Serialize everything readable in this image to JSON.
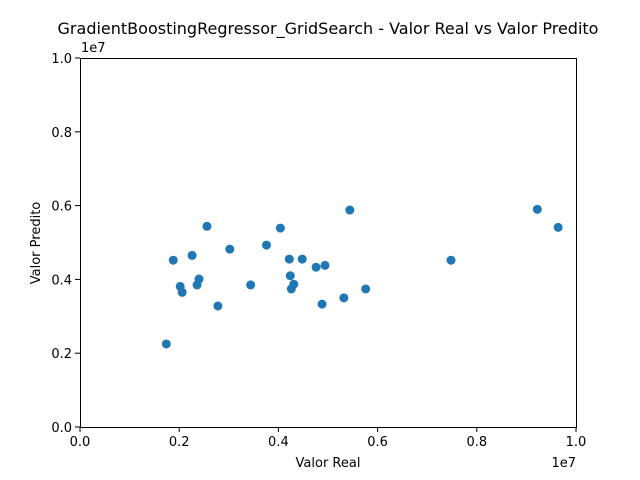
{
  "chart_data": {
    "type": "scatter",
    "title": "GradientBoostingRegressor_GridSearch - Valor Real vs Valor Predito",
    "xlabel": "Valor Real",
    "ylabel": "Valor Predito",
    "x_offset_label": "1e7",
    "y_offset_label": "1e7",
    "xlim": [
      0,
      10000000
    ],
    "ylim": [
      0,
      10000000
    ],
    "grid": false,
    "legend": "none",
    "marker_color": "#1f77b4",
    "x_ticks": [
      {
        "value": 0,
        "label": "0.0"
      },
      {
        "value": 2000000,
        "label": "0.2"
      },
      {
        "value": 4000000,
        "label": "0.4"
      },
      {
        "value": 6000000,
        "label": "0.6"
      },
      {
        "value": 8000000,
        "label": "0.8"
      },
      {
        "value": 10000000,
        "label": "1.0"
      }
    ],
    "y_ticks": [
      {
        "value": 0,
        "label": "0.0"
      },
      {
        "value": 2000000,
        "label": "0.2"
      },
      {
        "value": 4000000,
        "label": "0.4"
      },
      {
        "value": 6000000,
        "label": "0.6"
      },
      {
        "value": 8000000,
        "label": "0.8"
      },
      {
        "value": 10000000,
        "label": "1.0"
      }
    ],
    "points": [
      {
        "x": 1740000,
        "y": 2250000
      },
      {
        "x": 1880000,
        "y": 4520000
      },
      {
        "x": 2020000,
        "y": 3810000
      },
      {
        "x": 2060000,
        "y": 3650000
      },
      {
        "x": 2260000,
        "y": 4650000
      },
      {
        "x": 2360000,
        "y": 3850000
      },
      {
        "x": 2400000,
        "y": 4010000
      },
      {
        "x": 2560000,
        "y": 5440000
      },
      {
        "x": 2780000,
        "y": 3280000
      },
      {
        "x": 3020000,
        "y": 4820000
      },
      {
        "x": 3440000,
        "y": 3850000
      },
      {
        "x": 3760000,
        "y": 4930000
      },
      {
        "x": 4040000,
        "y": 5390000
      },
      {
        "x": 4220000,
        "y": 4550000
      },
      {
        "x": 4240000,
        "y": 4100000
      },
      {
        "x": 4260000,
        "y": 3740000
      },
      {
        "x": 4310000,
        "y": 3870000
      },
      {
        "x": 4480000,
        "y": 4550000
      },
      {
        "x": 4760000,
        "y": 4330000
      },
      {
        "x": 4880000,
        "y": 3330000
      },
      {
        "x": 4940000,
        "y": 4380000
      },
      {
        "x": 5320000,
        "y": 3500000
      },
      {
        "x": 5440000,
        "y": 5880000
      },
      {
        "x": 5760000,
        "y": 3740000
      },
      {
        "x": 7480000,
        "y": 4520000
      },
      {
        "x": 9220000,
        "y": 5900000
      },
      {
        "x": 9640000,
        "y": 5410000
      }
    ]
  }
}
